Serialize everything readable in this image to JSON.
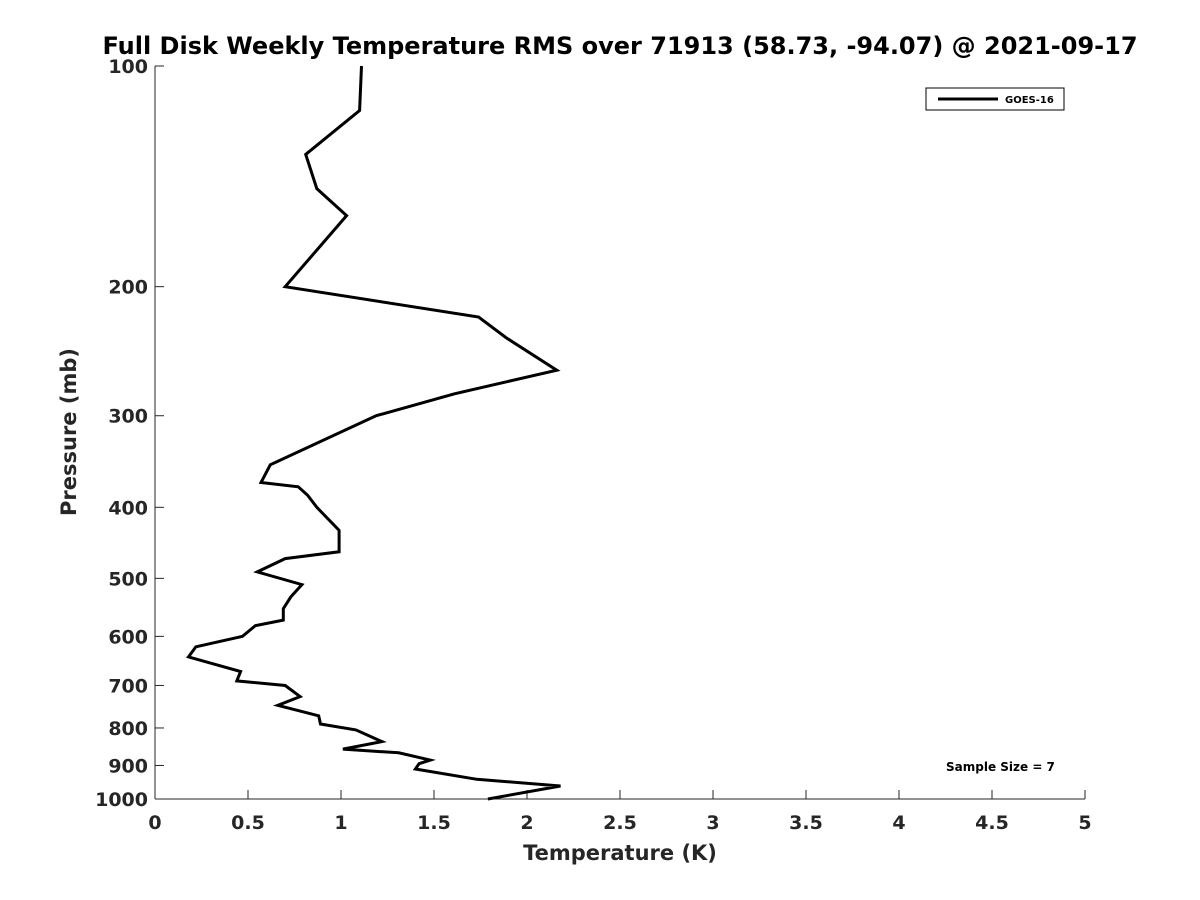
{
  "chart_data": {
    "type": "line",
    "title": "Full Disk Weekly Temperature RMS over 71913 (58.73, -94.07) @ 2021-09-17",
    "xlabel": "Temperature (K)",
    "ylabel": "Pressure (mb)",
    "xlim": [
      0,
      5
    ],
    "ylim": [
      100,
      1000
    ],
    "y_scale": "log",
    "y_reversed": true,
    "grid": false,
    "legend_position": "top-right",
    "x_ticks": [
      0,
      0.5,
      1,
      1.5,
      2,
      2.5,
      3,
      3.5,
      4,
      4.5,
      5
    ],
    "x_tick_labels": [
      "0",
      "0.5",
      "1",
      "1.5",
      "2",
      "2.5",
      "3",
      "3.5",
      "4",
      "4.5",
      "5"
    ],
    "y_ticks": [
      100,
      200,
      300,
      400,
      500,
      600,
      700,
      800,
      900,
      1000
    ],
    "y_tick_labels": [
      "100",
      "200",
      "300",
      "400",
      "500",
      "600",
      "700",
      "800",
      "900",
      "1000"
    ],
    "annotation": "Sample Size = 7",
    "series": [
      {
        "name": "GOES-16",
        "color": "#000000",
        "x": [
          1.11,
          1.1,
          0.81,
          0.87,
          1.03,
          0.7,
          1.74,
          1.89,
          2.16,
          1.61,
          1.19,
          0.62,
          0.57,
          0.77,
          0.82,
          0.87,
          0.99,
          0.99,
          0.7,
          0.55,
          0.79,
          0.73,
          0.69,
          0.69,
          0.54,
          0.47,
          0.22,
          0.18,
          0.46,
          0.44,
          0.7,
          0.78,
          0.66,
          0.88,
          0.89,
          1.08,
          1.22,
          1.01,
          1.31,
          1.48,
          1.42,
          1.4,
          1.73,
          2.18,
          1.79
        ],
        "y": [
          100,
          115,
          132,
          147,
          160,
          200,
          220,
          235,
          260,
          280,
          300,
          350,
          370,
          375,
          385,
          400,
          430,
          460,
          470,
          490,
          510,
          530,
          550,
          570,
          580,
          600,
          620,
          640,
          670,
          690,
          700,
          725,
          745,
          770,
          790,
          805,
          835,
          855,
          865,
          885,
          895,
          910,
          940,
          960,
          1000
        ]
      }
    ]
  }
}
